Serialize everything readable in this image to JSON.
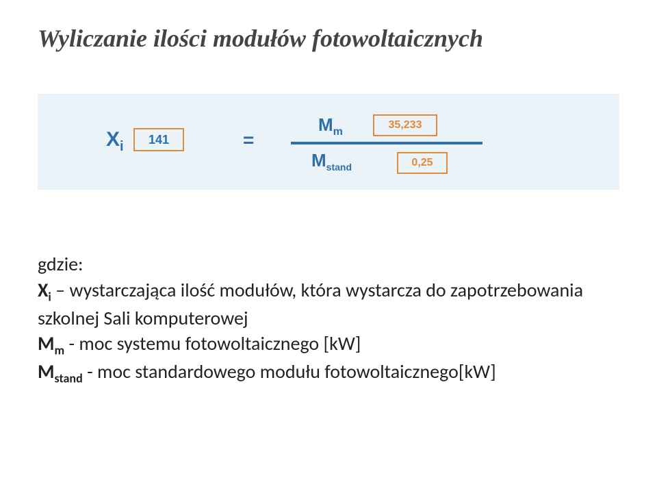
{
  "title": "Wyliczanie ilości modułów fotowoltaicznych",
  "formula": {
    "xi_symbol": "X",
    "xi_sub": "i",
    "xi_value": "141",
    "equals": "=",
    "numerator_symbol": "M",
    "numerator_sub": "m",
    "numerator_value": "35,233",
    "denominator_symbol": "M",
    "denominator_sub": "stand",
    "denominator_value": "0,25",
    "box_color": "#eaf3f8",
    "accent_color": "#2f6ea8",
    "outline_color": "#e08a3a"
  },
  "desc": {
    "gdzie": "gdzie:",
    "xi_var": "X",
    "xi_sub": "i",
    "xi_text": " – wystarczająca ilość modułów, która wystarcza do zapotrzebowania szkolnej Sali komputerowej",
    "mm_var": "M",
    "mm_sub": "m",
    "mm_text": " - moc systemu fotowoltaicznego [kW]",
    "ms_var": "M",
    "ms_sub": "stand",
    "ms_text": " - moc standardowego modułu fotowoltaicznego[kW]"
  }
}
